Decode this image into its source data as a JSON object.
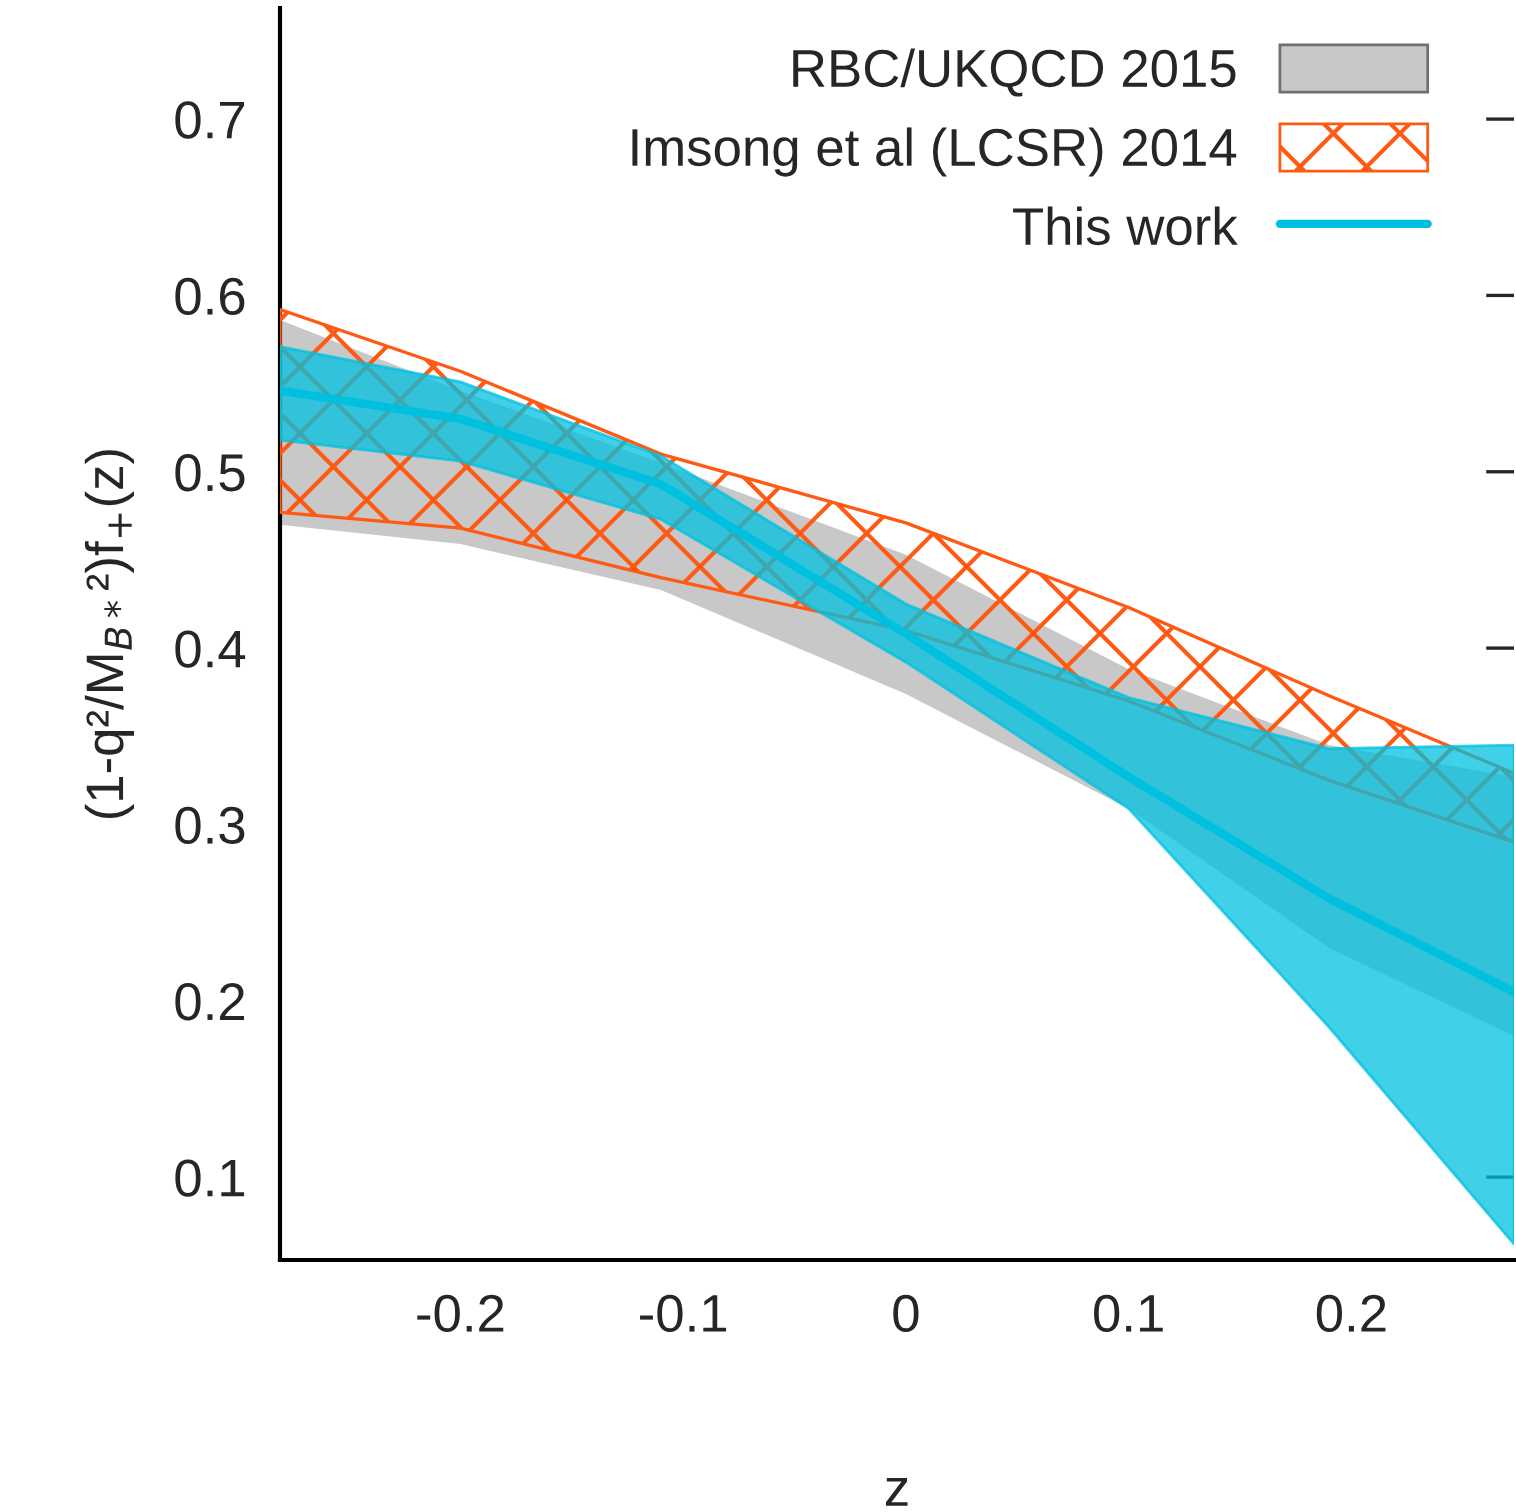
{
  "chart_data": {
    "type": "area",
    "xlabel": "z",
    "ylabel": "(1-q²/M$_{B*}$²)f$_{+}$(z)",
    "x": [
      -0.281,
      -0.2,
      -0.11,
      0,
      0.1,
      0.19,
      0.273
    ],
    "xlim": [
      -0.281,
      0.273
    ],
    "ylim": [
      0.053,
      0.763
    ],
    "xticks": [
      -0.2,
      -0.1,
      0,
      0.1,
      0.2
    ],
    "yticks": [
      0.1,
      0.2,
      0.3,
      0.4,
      0.5,
      0.6,
      0.7
    ],
    "grid": false,
    "legend": "top right",
    "series": [
      {
        "name": "RBC/UKQCD 2015",
        "color": "#c8c8c8",
        "values": [
          null,
          null,
          null,
          null,
          null,
          null,
          null
        ],
        "lower": [
          0.47,
          0.459,
          0.433,
          0.374,
          0.309,
          0.23,
          0.18
        ],
        "upper": [
          0.586,
          0.546,
          0.505,
          0.453,
          0.388,
          0.345,
          0.327
        ]
      },
      {
        "name": "Imsong et al (LCSR) 2014",
        "color": "#ff5a14",
        "line_style": "solid",
        "values": [
          null,
          null,
          null,
          null,
          null,
          null,
          null
        ],
        "lower": [
          0.477,
          0.468,
          0.44,
          0.41,
          0.37,
          0.325,
          0.29
        ],
        "upper": [
          0.592,
          0.557,
          0.51,
          0.471,
          0.423,
          0.373,
          0.329
        ]
      },
      {
        "name": "This work",
        "type": "line",
        "color": "#00c0e0",
        "values": [
          0.546,
          0.53,
          0.493,
          0.408,
          0.327,
          0.258,
          0.205
        ],
        "lower": [
          0.518,
          0.506,
          0.473,
          0.392,
          0.309,
          0.185,
          0.062
        ],
        "upper": [
          0.571,
          0.551,
          0.509,
          0.425,
          0.372,
          0.343,
          0.345
        ]
      }
    ]
  }
}
